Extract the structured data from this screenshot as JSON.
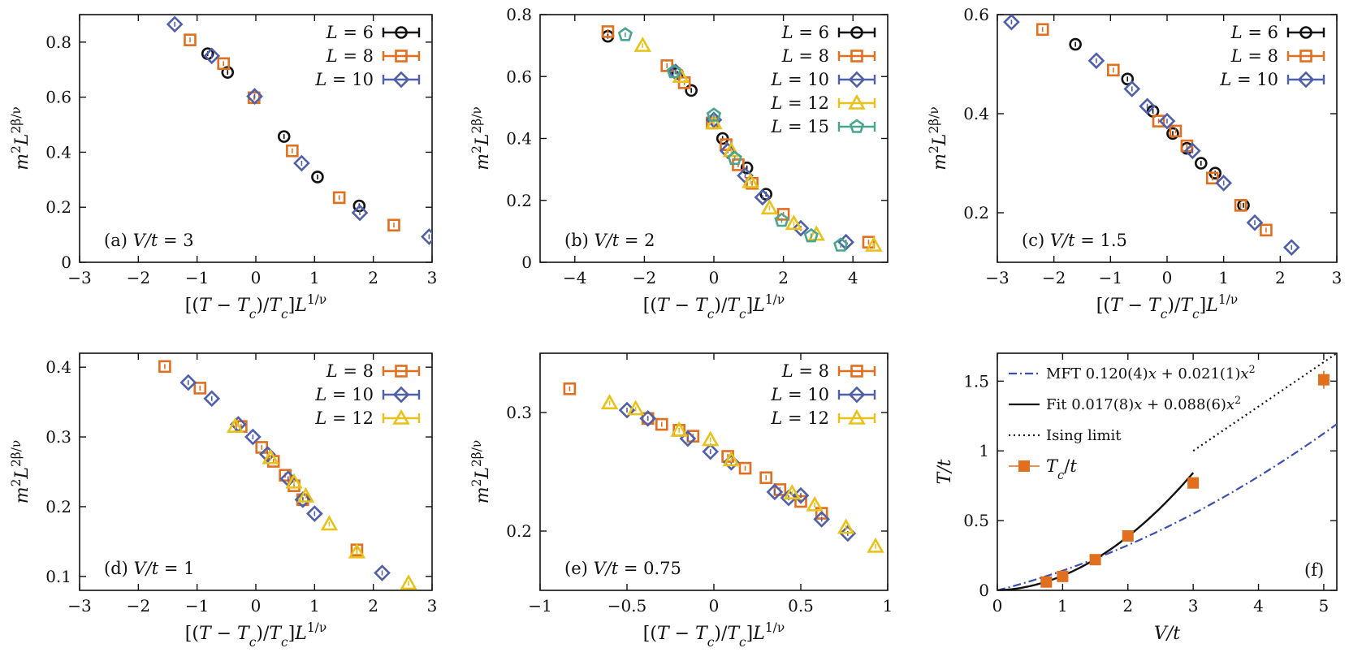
{
  "colors": {
    "L6": "#111111",
    "L8": "#e06f1f",
    "L10": "#4f5fa8",
    "L12": "#e8c21a",
    "L15": "#4aa58f",
    "mft": "#3b4fb0",
    "fit": "#111111",
    "ising": "#111111",
    "tc": "#e06f1f"
  },
  "chart_data": [
    {
      "type": "scatter",
      "panel_label": "(a) V/t = 3",
      "xlabel": "[(T − Tc)/Tc]L1/ν",
      "ylabel": "m2L2β/ν",
      "xlim": [
        -3,
        3
      ],
      "ylim": [
        0,
        0.9
      ],
      "xticks": [
        -3,
        -2,
        -1,
        0,
        1,
        2,
        3
      ],
      "xtick_labels": [
        "−3",
        "−2",
        "−1",
        "0",
        "1",
        "2",
        "3"
      ],
      "yticks": [
        0,
        0.2,
        0.4,
        0.6,
        0.8
      ],
      "ytick_labels": [
        "0",
        "0.2",
        "0.4",
        "0.6",
        "0.8"
      ],
      "legend": "top-right",
      "series": [
        {
          "name": "L = 6",
          "marker": "circle",
          "color_key": "L6",
          "x": [
            -0.82,
            -0.48,
            0.48,
            1.05,
            1.76
          ],
          "y": [
            0.758,
            0.69,
            0.457,
            0.31,
            0.205
          ]
        },
        {
          "name": "L = 8",
          "marker": "square",
          "color_key": "L8",
          "x": [
            -1.12,
            -0.55,
            -0.03,
            0.62,
            1.42,
            2.35
          ],
          "y": [
            0.808,
            0.722,
            0.598,
            0.405,
            0.235,
            0.135
          ]
        },
        {
          "name": "L = 10",
          "marker": "diamond",
          "color_key": "L10",
          "x": [
            -1.38,
            -0.75,
            -0.02,
            0.78,
            1.77,
            2.95
          ],
          "y": [
            0.865,
            0.75,
            0.603,
            0.36,
            0.18,
            0.093
          ]
        }
      ]
    },
    {
      "type": "scatter",
      "panel_label": "(b) V/t = 2",
      "xlabel": "[(T − Tc)/Tc]L1/ν",
      "ylabel": "m2L2β/ν",
      "xlim": [
        -5,
        5
      ],
      "ylim": [
        0,
        0.8
      ],
      "xticks": [
        -4,
        -2,
        0,
        2,
        4
      ],
      "xtick_labels": [
        "−4",
        "−2",
        "0",
        "2",
        "4"
      ],
      "yticks": [
        0,
        0.2,
        0.4,
        0.6,
        0.8
      ],
      "ytick_labels": [
        "0",
        "0.2",
        "0.4",
        "0.6",
        "0.8"
      ],
      "legend": "top-right",
      "series": [
        {
          "name": "L = 6",
          "marker": "circle",
          "color_key": "L6",
          "x": [
            -3.05,
            -1.05,
            -0.65,
            0.25,
            0.95,
            1.5
          ],
          "y": [
            0.73,
            0.61,
            0.555,
            0.4,
            0.305,
            0.22
          ]
        },
        {
          "name": "L = 8",
          "marker": "square",
          "color_key": "L8",
          "x": [
            -3.05,
            -1.35,
            -0.85,
            -0.05,
            0.35,
            0.7,
            1.1,
            2.0,
            4.45
          ],
          "y": [
            0.745,
            0.635,
            0.58,
            0.45,
            0.38,
            0.315,
            0.255,
            0.155,
            0.065
          ]
        },
        {
          "name": "L = 10",
          "marker": "diamond",
          "color_key": "L10",
          "x": [
            -1.1,
            0.0,
            0.4,
            0.9,
            1.4,
            2.5,
            3.8
          ],
          "y": [
            0.615,
            0.46,
            0.36,
            0.28,
            0.21,
            0.11,
            0.065
          ]
        },
        {
          "name": "L = 12",
          "marker": "triangle",
          "color_key": "L12",
          "x": [
            -2.05,
            -0.95,
            0.0,
            0.5,
            1.05,
            1.6,
            2.3,
            2.95,
            4.6
          ],
          "y": [
            0.7,
            0.6,
            0.45,
            0.36,
            0.26,
            0.175,
            0.125,
            0.09,
            0.055
          ]
        },
        {
          "name": "L = 15",
          "marker": "pentagon",
          "color_key": "L15",
          "x": [
            -2.55,
            -1.15,
            0.0,
            0.6,
            1.95,
            2.8,
            3.65
          ],
          "y": [
            0.735,
            0.615,
            0.475,
            0.335,
            0.135,
            0.085,
            0.055
          ]
        }
      ]
    },
    {
      "type": "scatter",
      "panel_label": "(c) V/t = 1.5",
      "xlabel": "[(T − Tc)/Tc]L1/ν",
      "ylabel": "m2L2β/ν",
      "xlim": [
        -3,
        3
      ],
      "ylim": [
        0.1,
        0.6
      ],
      "xticks": [
        -3,
        -2,
        -1,
        0,
        1,
        2,
        3
      ],
      "xtick_labels": [
        "−3",
        "−2",
        "−1",
        "0",
        "1",
        "2",
        "3"
      ],
      "yticks": [
        0.2,
        0.4,
        0.6
      ],
      "ytick_labels": [
        "0.2",
        "0.4",
        "0.6"
      ],
      "legend": "top-right",
      "series": [
        {
          "name": "L = 6",
          "marker": "circle",
          "color_key": "L6",
          "x": [
            -1.62,
            -0.7,
            -0.25,
            0.1,
            0.35,
            0.6,
            0.85,
            1.35
          ],
          "y": [
            0.54,
            0.47,
            0.405,
            0.36,
            0.33,
            0.3,
            0.28,
            0.215
          ]
        },
        {
          "name": "L = 8",
          "marker": "square",
          "color_key": "L8",
          "x": [
            -2.2,
            -0.95,
            -0.15,
            0.15,
            0.35,
            0.8,
            1.3,
            1.75
          ],
          "y": [
            0.57,
            0.488,
            0.385,
            0.365,
            0.335,
            0.27,
            0.215,
            0.165
          ]
        },
        {
          "name": "L = 10",
          "marker": "diamond",
          "color_key": "L10",
          "x": [
            -2.75,
            -1.25,
            -0.62,
            -0.35,
            0.0,
            0.45,
            1.0,
            1.55,
            2.2
          ],
          "y": [
            0.585,
            0.507,
            0.45,
            0.415,
            0.385,
            0.325,
            0.26,
            0.18,
            0.13
          ]
        }
      ]
    },
    {
      "type": "scatter",
      "panel_label": "(d) V/t = 1",
      "xlabel": "[(T − Tc)/Tc]L1/ν",
      "ylabel": "m2L2β/ν",
      "xlim": [
        -3,
        3
      ],
      "ylim": [
        0.08,
        0.42
      ],
      "xticks": [
        -3,
        -2,
        -1,
        0,
        1,
        2,
        3
      ],
      "xtick_labels": [
        "−3",
        "−2",
        "−1",
        "0",
        "1",
        "2",
        "3"
      ],
      "yticks": [
        0.1,
        0.2,
        0.3,
        0.4
      ],
      "ytick_labels": [
        "0.1",
        "0.2",
        "0.3",
        "0.4"
      ],
      "legend": "top-right",
      "series": [
        {
          "name": "L = 8",
          "marker": "square",
          "color_key": "L8",
          "x": [
            -1.55,
            -0.95,
            -0.25,
            0.1,
            0.3,
            0.5,
            0.65,
            0.8,
            1.72
          ],
          "y": [
            0.401,
            0.37,
            0.315,
            0.285,
            0.265,
            0.245,
            0.23,
            0.21,
            0.138
          ]
        },
        {
          "name": "L = 10",
          "marker": "diamond",
          "color_key": "L10",
          "x": [
            -1.15,
            -0.75,
            -0.3,
            -0.05,
            0.2,
            0.55,
            0.8,
            1.0,
            2.15
          ],
          "y": [
            0.378,
            0.355,
            0.318,
            0.3,
            0.275,
            0.24,
            0.21,
            0.19,
            0.105
          ]
        },
        {
          "name": "L = 12",
          "marker": "triangle",
          "color_key": "L12",
          "x": [
            -0.35,
            0.25,
            0.65,
            0.85,
            1.25,
            1.72,
            2.6
          ],
          "y": [
            0.315,
            0.27,
            0.235,
            0.215,
            0.175,
            0.135,
            0.09
          ]
        }
      ]
    },
    {
      "type": "scatter",
      "panel_label": "(e) V/t = 0.75",
      "xlabel": "[(T − Tc)/Tc]L1/ν",
      "ylabel": "m2L2β/ν",
      "xlim": [
        -1,
        1
      ],
      "ylim": [
        0.15,
        0.35
      ],
      "xticks": [
        -1,
        -0.5,
        0,
        0.5,
        1
      ],
      "xtick_labels": [
        "−1",
        "−0.5",
        "0",
        "0.5",
        "1"
      ],
      "yticks": [
        0.2,
        0.3
      ],
      "ytick_labels": [
        "0.2",
        "0.3"
      ],
      "legend": "top-right",
      "series": [
        {
          "name": "L = 8",
          "marker": "square",
          "color_key": "L8",
          "x": [
            -0.83,
            -0.38,
            -0.3,
            -0.2,
            -0.12,
            0.08,
            0.18,
            0.3,
            0.38,
            0.5,
            0.62
          ],
          "y": [
            0.32,
            0.295,
            0.29,
            0.285,
            0.28,
            0.263,
            0.253,
            0.245,
            0.235,
            0.225,
            0.215
          ]
        },
        {
          "name": "L = 10",
          "marker": "diamond",
          "color_key": "L10",
          "x": [
            -0.5,
            -0.38,
            -0.15,
            -0.02,
            0.1,
            0.35,
            0.43,
            0.5,
            0.62,
            0.77
          ],
          "y": [
            0.302,
            0.295,
            0.278,
            0.267,
            0.258,
            0.233,
            0.228,
            0.23,
            0.21,
            0.198
          ]
        },
        {
          "name": "L = 12",
          "marker": "triangle",
          "color_key": "L12",
          "x": [
            -0.6,
            -0.45,
            -0.2,
            -0.02,
            0.1,
            0.45,
            0.58,
            0.76,
            0.93
          ],
          "y": [
            0.308,
            0.303,
            0.285,
            0.277,
            0.26,
            0.232,
            0.222,
            0.203,
            0.187
          ]
        }
      ]
    },
    {
      "type": "line",
      "panel_label": "(f)",
      "xlabel": "V/t",
      "ylabel": "T/t",
      "xlim": [
        0,
        5.2
      ],
      "ylim": [
        0,
        1.7
      ],
      "xticks": [
        0,
        1,
        2,
        3,
        4,
        5
      ],
      "xtick_labels": [
        "0",
        "1",
        "2",
        "3",
        "4",
        "5"
      ],
      "yticks": [
        0,
        0.5,
        1,
        1.5
      ],
      "ytick_labels": [
        "0",
        "0.5",
        "1",
        "1.5"
      ],
      "legend": "top-left",
      "curves": [
        {
          "name": "MFT 0.120(4)x + 0.021(1)x2",
          "style": "dash-dot",
          "color_key": "mft",
          "a": 0.12,
          "b": 0.021,
          "x_range": [
            0,
            5.2
          ]
        },
        {
          "name": "Fit 0.017(8)x + 0.088(6)x2",
          "style": "solid",
          "color_key": "fit",
          "a": 0.017,
          "b": 0.088,
          "x_range": [
            0,
            3
          ]
        },
        {
          "name": "Ising limit",
          "style": "dotted",
          "color_key": "ising",
          "x": [
            3.0,
            5.2
          ],
          "y": [
            1.0,
            1.7
          ]
        }
      ],
      "points": {
        "name": "Tc/t",
        "marker": "filled-square",
        "color_key": "tc",
        "x": [
          0.75,
          1.0,
          1.5,
          2.0,
          3.0,
          5.0
        ],
        "y": [
          0.06,
          0.1,
          0.22,
          0.39,
          0.77,
          1.51
        ]
      }
    }
  ]
}
